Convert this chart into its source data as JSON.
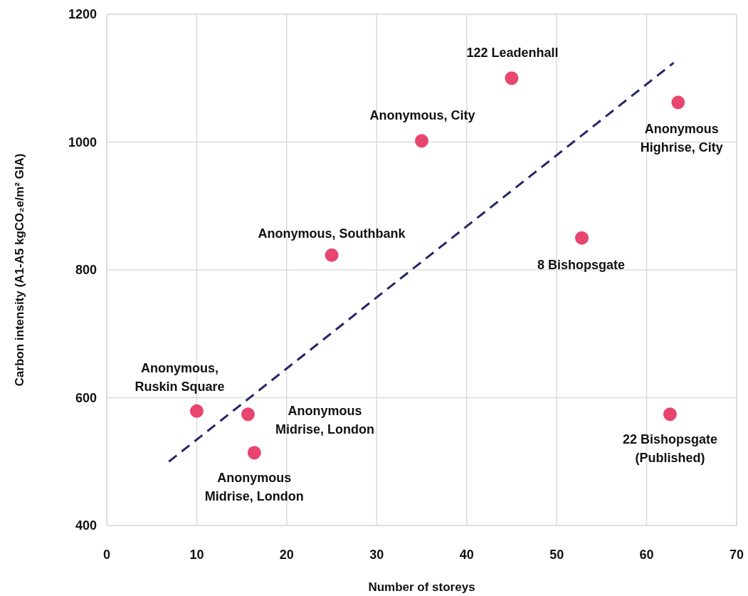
{
  "chart_data": {
    "type": "scatter",
    "xlabel": "Number of storeys",
    "ylabel": "Carbon intensity (A1-A5 kgCO₂e/m² GIA)",
    "xlim": [
      0,
      70
    ],
    "xticks": [
      0,
      10,
      20,
      30,
      40,
      50,
      60,
      70
    ],
    "ylim": [
      400,
      1200
    ],
    "yticks": [
      400,
      600,
      800,
      1000,
      1200
    ],
    "grid": true,
    "marker": "circle",
    "line_style": "dashed",
    "series": [
      {
        "color": "#e8456f",
        "x": [
          10.0,
          15.7,
          16.4,
          25.0,
          35.0,
          45.0,
          52.8,
          63.5,
          62.6
        ],
        "values": [
          579,
          574,
          514,
          823,
          1002,
          1100,
          850,
          1062,
          574
        ]
      },
      {
        "type": "line",
        "marker": "none",
        "color": "#27276b",
        "x": [
          6.9,
          63.0
        ],
        "values": [
          500,
          1124
        ]
      }
    ],
    "annotations": [
      {
        "text": "Anonymous,\nRuskin Square",
        "x": 10.0,
        "y": 579
      },
      {
        "text": "Anonymous\nMidrise, London",
        "x": 15.7,
        "y": 574
      },
      {
        "text": "Anonymous\nMidrise, London",
        "x": 16.4,
        "y": 514
      },
      {
        "text": "Anonymous, Southbank",
        "x": 25.0,
        "y": 823
      },
      {
        "text": "Anonymous, City",
        "x": 35.0,
        "y": 1002
      },
      {
        "text": "122 Leadenhall",
        "x": 45.0,
        "y": 1100
      },
      {
        "text": "8 Bishopsgate",
        "x": 52.8,
        "y": 850
      },
      {
        "text": "Anonymous\nHighrise, City",
        "x": 63.5,
        "y": 1062
      },
      {
        "text": "22 Bishopsgate\n(Published)",
        "x": 62.6,
        "y": 574
      }
    ]
  }
}
